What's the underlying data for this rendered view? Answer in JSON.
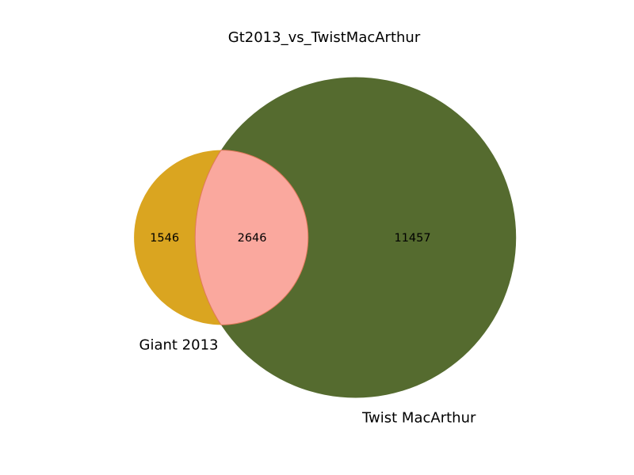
{
  "chart_data": {
    "type": "venn",
    "title": "Gt2013_vs_TwistMacArthur",
    "sets": [
      {
        "name": "Giant 2013",
        "only": 1546,
        "color": "#DAA520"
      },
      {
        "name": "Twist MacArthur",
        "only": 11457,
        "color": "#556B2F"
      }
    ],
    "intersection": {
      "value": 2646,
      "color": "#FAA89E",
      "edge_color": "#E0785A"
    }
  }
}
